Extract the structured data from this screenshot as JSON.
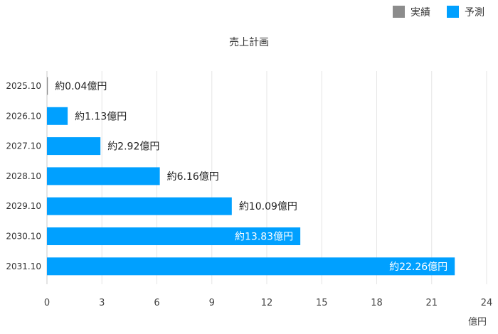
{
  "chart_data": {
    "type": "bar",
    "orientation": "horizontal",
    "title": "売上計画",
    "xlabel": "億円",
    "ylabel": "",
    "xlim": [
      0,
      24
    ],
    "xticks": [
      0,
      3,
      6,
      9,
      12,
      15,
      18,
      21,
      24
    ],
    "grid": true,
    "legend_position": "top-right",
    "categories": [
      "2025.10",
      "2026.10",
      "2027.10",
      "2028.10",
      "2029.10",
      "2030.10",
      "2031.10"
    ],
    "series": [
      {
        "name": "実績",
        "color": "#8c8c8c",
        "values": [
          0.04,
          null,
          null,
          null,
          null,
          null,
          null
        ]
      },
      {
        "name": "予測",
        "color": "#00a0ff",
        "values": [
          null,
          1.13,
          2.92,
          6.16,
          10.09,
          13.83,
          22.26
        ]
      }
    ],
    "data_labels": [
      "約0.04億円",
      "約1.13億円",
      "約2.92億円",
      "約6.16億円",
      "約10.09億円",
      "約13.83億円",
      "約22.26億円"
    ],
    "data_label_inside": [
      false,
      false,
      false,
      false,
      false,
      true,
      true
    ]
  }
}
